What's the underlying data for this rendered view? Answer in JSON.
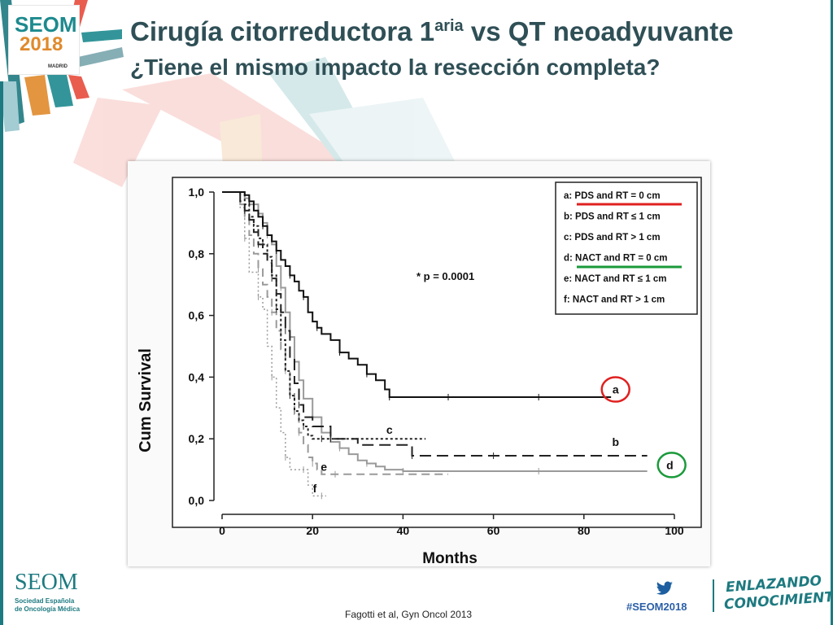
{
  "logo": {
    "brand": "SEOM",
    "year": "2018",
    "city": "MADRID"
  },
  "title": {
    "main": "Cirugía citorreductora 1",
    "sup": "aria",
    "rest": " vs QT neoadyuvante",
    "subtitle": "¿Tiene el mismo impacto la resección completa?"
  },
  "footer": {
    "org": "SEOM",
    "org_full_1": "Sociedad Española",
    "org_full_2": "de Oncología Médica",
    "citation": "Fagotti et al, Gyn Oncol 2013",
    "hashtag": "#SEOM2018",
    "tagline_1": "ENLAZANDO",
    "tagline_2": "CONOCIMIENTO"
  },
  "colors": {
    "teal": "#1d7a80",
    "title": "#2f4f56",
    "highlight_red": "#e02020",
    "highlight_green": "#1a9a3a"
  },
  "chart_data": {
    "type": "line",
    "xlabel": "Months",
    "ylabel": "Cum Survival",
    "xlim": [
      0,
      100
    ],
    "ylim": [
      0,
      1
    ],
    "xticks": [
      "0",
      "20",
      "40",
      "60",
      "80",
      "100"
    ],
    "yticks": [
      "0,0",
      "0,2",
      "0,4",
      "0,6",
      "0,8",
      "1,0"
    ],
    "annotation": "* p = 0.0001",
    "legend": [
      "a: PDS and RT = 0 cm",
      "b: PDS and RT ≤ 1 cm",
      "c: PDS and RT > 1 cm",
      "d: NACT and RT = 0 cm",
      "e: NACT and RT ≤ 1 cm",
      "f: NACT and RT > 1 cm"
    ],
    "legend_position": "top-right",
    "series": [
      {
        "name": "a",
        "color": "#111111",
        "dash": "",
        "width": 2,
        "x": [
          0,
          3,
          5,
          6,
          7,
          8,
          9,
          10,
          11,
          12,
          13,
          14,
          15,
          16,
          17,
          18,
          19,
          20,
          21,
          22,
          24,
          26,
          28,
          30,
          32,
          34,
          36,
          37,
          40,
          45,
          50,
          55,
          60,
          70,
          80,
          86
        ],
        "y": [
          1.0,
          1.0,
          0.99,
          0.97,
          0.94,
          0.92,
          0.89,
          0.86,
          0.84,
          0.81,
          0.78,
          0.76,
          0.73,
          0.71,
          0.68,
          0.66,
          0.61,
          0.58,
          0.56,
          0.54,
          0.52,
          0.48,
          0.46,
          0.44,
          0.41,
          0.39,
          0.36,
          0.335,
          0.335,
          0.335,
          0.335,
          0.335,
          0.335,
          0.335,
          0.335,
          0.335
        ]
      },
      {
        "name": "b",
        "color": "#222222",
        "dash": "14,7",
        "width": 2,
        "x": [
          0,
          3,
          4,
          5,
          6,
          7,
          8,
          9,
          10,
          11,
          12,
          13,
          14,
          15,
          16,
          17,
          18,
          20,
          24,
          30,
          36,
          42,
          44,
          50,
          60,
          70,
          80,
          94
        ],
        "y": [
          1.0,
          1.0,
          0.97,
          0.94,
          0.91,
          0.87,
          0.83,
          0.8,
          0.77,
          0.72,
          0.67,
          0.61,
          0.55,
          0.46,
          0.38,
          0.31,
          0.27,
          0.24,
          0.2,
          0.18,
          0.18,
          0.145,
          0.145,
          0.145,
          0.145,
          0.145,
          0.145,
          0.145
        ]
      },
      {
        "name": "c",
        "color": "#222222",
        "dash": "3,3",
        "width": 2,
        "x": [
          0,
          3,
          5,
          6,
          7,
          8,
          9,
          10,
          11,
          12,
          13,
          14,
          15,
          16,
          17,
          18,
          19,
          20,
          22,
          30,
          40,
          45
        ],
        "y": [
          1.0,
          1.0,
          0.96,
          0.92,
          0.89,
          0.85,
          0.83,
          0.79,
          0.73,
          0.62,
          0.52,
          0.42,
          0.34,
          0.29,
          0.26,
          0.24,
          0.21,
          0.2,
          0.2,
          0.2,
          0.2,
          0.2
        ]
      },
      {
        "name": "d",
        "color": "#9a9a9a",
        "dash": "",
        "width": 2,
        "x": [
          0,
          3,
          5,
          6,
          8,
          9,
          10,
          11,
          12,
          13,
          14,
          15,
          16,
          17,
          18,
          20,
          22,
          24,
          26,
          28,
          30,
          32,
          34,
          36,
          40,
          50,
          60,
          70,
          80,
          94
        ],
        "y": [
          1.0,
          1.0,
          0.98,
          0.96,
          0.93,
          0.9,
          0.86,
          0.83,
          0.76,
          0.69,
          0.61,
          0.53,
          0.45,
          0.39,
          0.33,
          0.27,
          0.22,
          0.19,
          0.17,
          0.15,
          0.13,
          0.12,
          0.11,
          0.1,
          0.095,
          0.095,
          0.095,
          0.095,
          0.095,
          0.095
        ]
      },
      {
        "name": "e",
        "color": "#9a9a9a",
        "dash": "10,6",
        "width": 2,
        "x": [
          0,
          3,
          4,
          5,
          6,
          7,
          8,
          9,
          10,
          11,
          12,
          13,
          14,
          15,
          16,
          17,
          18,
          19,
          20,
          21,
          22,
          25,
          30,
          40,
          50
        ],
        "y": [
          1.0,
          1.0,
          0.96,
          0.92,
          0.86,
          0.8,
          0.75,
          0.7,
          0.66,
          0.61,
          0.55,
          0.49,
          0.42,
          0.35,
          0.28,
          0.22,
          0.18,
          0.14,
          0.12,
          0.1,
          0.085,
          0.085,
          0.085,
          0.085,
          0.085
        ]
      },
      {
        "name": "f",
        "color": "#9a9a9a",
        "dash": "2,3",
        "width": 1.5,
        "x": [
          0,
          3,
          4,
          5,
          6,
          7,
          8,
          9,
          10,
          11,
          12,
          13,
          14,
          15,
          16,
          18,
          19,
          20,
          22,
          23
        ],
        "y": [
          1.0,
          1.0,
          0.95,
          0.85,
          0.74,
          0.74,
          0.66,
          0.62,
          0.5,
          0.4,
          0.3,
          0.22,
          0.14,
          0.1,
          0.1,
          0.1,
          0.05,
          0.015,
          0.015,
          0.015
        ]
      }
    ],
    "curve_labels": [
      {
        "text": "a",
        "x": 87,
        "y": 0.36
      },
      {
        "text": "b",
        "x": 87,
        "y": 0.19
      },
      {
        "text": "c",
        "x": 37,
        "y": 0.23
      },
      {
        "text": "d",
        "x": 99,
        "y": 0.115
      },
      {
        "text": "e",
        "x": 22.5,
        "y": 0.11
      },
      {
        "text": "f",
        "x": 20.5,
        "y": 0.04
      }
    ]
  }
}
